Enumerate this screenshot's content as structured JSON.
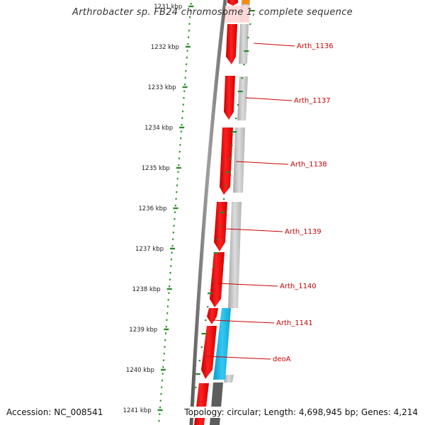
{
  "title": "Arthrobacter sp. FB24 chromosome 1, complete sequence",
  "accession": "Accession: NC_008541",
  "topology": "Topology: circular; Length: 4,698,945 bp; Genes: 4,214",
  "scale": {
    "ticks": [
      "1231 kbp",
      "1232 kbp",
      "1233 kbp",
      "1234 kbp",
      "1235 kbp",
      "1236 kbp",
      "1237 kbp",
      "1238 kbp",
      "1239 kbp",
      "1240 kbp",
      "1241 kbp"
    ]
  },
  "genes": [
    {
      "label": "Arth_1136",
      "strand": "-"
    },
    {
      "label": "Arth_1137",
      "strand": "-"
    },
    {
      "label": "Arth_1138",
      "strand": "-"
    },
    {
      "label": "Arth_1139",
      "strand": "-"
    },
    {
      "label": "Arth_1140",
      "strand": "-"
    },
    {
      "label": "Arth_1141",
      "strand": "-"
    },
    {
      "label": "deoA",
      "strand": "-"
    }
  ],
  "colors": {
    "gene": "#ee0000",
    "highlight_gene": "#1ab4e6",
    "gene_label": "#cc0000",
    "tick": "#2a8a2a",
    "backbone": "#8c8c8c",
    "cds_track": "#c4c4c4"
  }
}
